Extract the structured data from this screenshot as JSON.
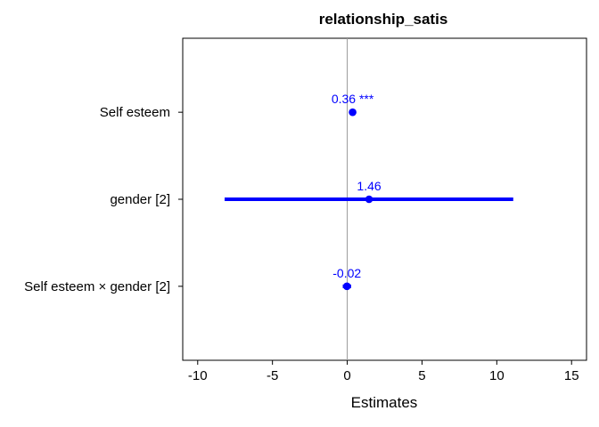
{
  "chart_data": {
    "type": "forest",
    "title": "relationship_satis",
    "xlabel": "Estimates",
    "ylabel": "",
    "xlim": [
      -11,
      16
    ],
    "x_ticks": [
      -10,
      -5,
      0,
      5,
      10,
      15
    ],
    "x_tick_labels": [
      "-10",
      "-5",
      "0",
      "5",
      "10",
      "15"
    ],
    "zero_line": 0,
    "grid": false,
    "legend": "none",
    "color": "#0000ff",
    "terms": [
      {
        "label": "Self esteem",
        "estimate": 0.36,
        "ci_low": 0.16,
        "ci_high": 0.56,
        "estimate_label": "0.36 ***"
      },
      {
        "label": "gender [2]",
        "estimate": 1.46,
        "ci_low": -8.2,
        "ci_high": 11.1,
        "estimate_label": "1.46"
      },
      {
        "label": "Self esteem × gender [2]",
        "estimate": -0.02,
        "ci_low": -0.3,
        "ci_high": 0.26,
        "estimate_label": "-0.02"
      }
    ]
  }
}
